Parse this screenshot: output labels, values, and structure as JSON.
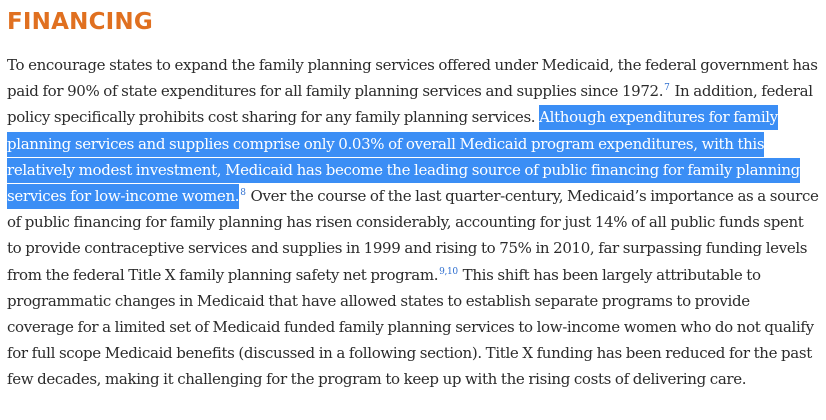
{
  "heading": "FINANCING",
  "paragraph": {
    "s1": "To encourage states to expand the family planning services offered under Medicaid, the federal government has paid for 90% of state expenditures for all family planning services and supplies since 1972.",
    "ref1": "7",
    "s2": "  In addition, federal policy specifically prohibits cost sharing for any family planning services.  ",
    "highlight": "Although expenditures for family planning services and supplies comprise only 0.03% of overall Medicaid program expenditures, with this relatively modest investment, Medicaid has become the leading source of public financing for family planning services for low-income women.",
    "ref2": "8",
    "s3": " Over the course of the last quarter-century, Medicaid’s importance as a source of public financing for family planning has risen considerably, accounting for just 14% of all public funds spent to provide contraceptive services and supplies in 1999 and rising to 75% in 2010,  far surpassing funding levels from the federal Title X family planning safety net program.",
    "ref3": "9,10",
    "s4": "  This shift has been largely attributable to programmatic changes in Medicaid that have allowed states to establish separate programs to provide coverage for a limited set of Medicaid funded family planning services to low-income women who do not qualify for full scope Medicaid benefits (discussed in a following section).  Title X funding has been reduced for the past few decades, making it challenging for the program to keep up with the rising costs of delivering care."
  },
  "colors": {
    "heading": "#e07020",
    "highlight_bg": "#3b8ef5",
    "body_text": "#2b2b2b",
    "footnote_link": "#2f6fd0"
  }
}
